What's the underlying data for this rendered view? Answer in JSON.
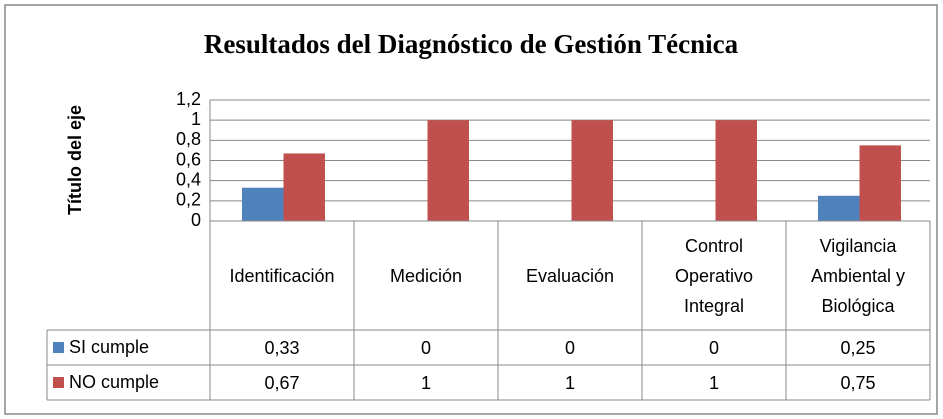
{
  "chart_data": {
    "type": "bar",
    "title": "Resultados del Diagnóstico de Gestión Técnica",
    "y_axis_label": "Título del eje",
    "categories": [
      "Identificación",
      "Medición",
      "Evaluación",
      "Control Operativo Integral",
      "Vigilancia Ambiental y Biológica"
    ],
    "series": [
      {
        "name": "SI cumple",
        "color": "#4f81bd",
        "values": [
          0.33,
          0,
          0,
          0,
          0.25
        ],
        "value_labels": [
          "0,33",
          "0",
          "0",
          "0",
          "0,25"
        ]
      },
      {
        "name": "NO cumple",
        "color": "#c0504d",
        "values": [
          0.67,
          1,
          1,
          1,
          0.75
        ],
        "value_labels": [
          "0,67",
          "1",
          "1",
          "1",
          "0,75"
        ]
      }
    ],
    "ylim": [
      0,
      1.2
    ],
    "yticks": [
      0,
      {
        "value": 0.2,
        "label": "0,2"
      },
      {
        "value": 0.4,
        "label": "0,4"
      },
      {
        "value": 0.6,
        "label": "0,6"
      },
      {
        "value": 0.8,
        "label": "0,8"
      },
      1,
      {
        "value": 1.2,
        "label": "1,2"
      }
    ],
    "grid": true
  }
}
